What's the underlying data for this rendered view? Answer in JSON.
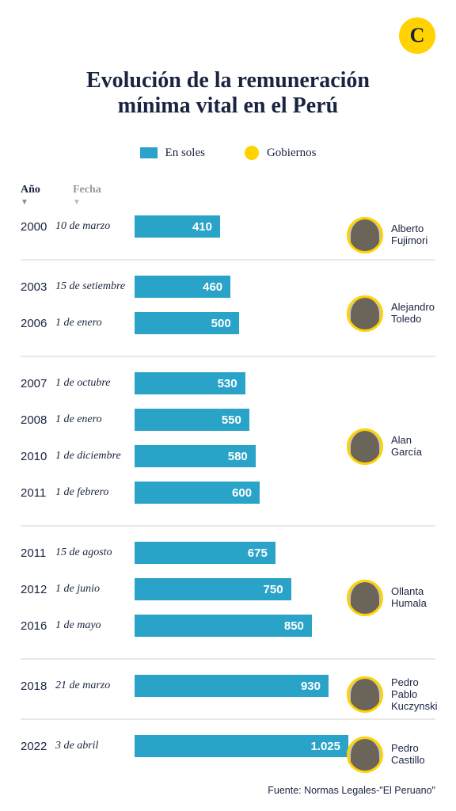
{
  "logo_letter": "C",
  "title_line1": "Evolución de la remuneración",
  "title_line2": "mínima vital en el Perú",
  "legend": {
    "soles": "En soles",
    "gobiernos": "Gobiernos"
  },
  "headers": {
    "year": "Año",
    "date": "Fecha"
  },
  "chart": {
    "max_value": 1025,
    "bar_color": "#2aa3c9",
    "ring_color": "#ffd200",
    "title_color": "#1a2340"
  },
  "groups": [
    {
      "president": "Alberto Fujimori",
      "rows": [
        {
          "year": "2000",
          "date": "10 de marzo",
          "value": 410,
          "label": "410"
        }
      ]
    },
    {
      "president": "Alejandro Toledo",
      "rows": [
        {
          "year": "2003",
          "date": "15 de setiembre",
          "value": 460,
          "label": "460"
        },
        {
          "year": "2006",
          "date": "1 de enero",
          "value": 500,
          "label": "500"
        }
      ]
    },
    {
      "president": "Alan García",
      "rows": [
        {
          "year": "2007",
          "date": "1 de octubre",
          "value": 530,
          "label": "530"
        },
        {
          "year": "2008",
          "date": "1 de enero",
          "value": 550,
          "label": "550"
        },
        {
          "year": "2010",
          "date": "1 de diciembre",
          "value": 580,
          "label": "580"
        },
        {
          "year": "2011",
          "date": "1 de febrero",
          "value": 600,
          "label": "600"
        }
      ]
    },
    {
      "president": "Ollanta Humala",
      "rows": [
        {
          "year": "2011",
          "date": "15 de agosto",
          "value": 675,
          "label": "675"
        },
        {
          "year": "2012",
          "date": "1 de junio",
          "value": 750,
          "label": "750"
        },
        {
          "year": "2016",
          "date": "1 de mayo",
          "value": 850,
          "label": "850"
        }
      ]
    },
    {
      "president": "Pedro Pablo Kuczynski",
      "rows": [
        {
          "year": "2018",
          "date": "21 de marzo",
          "value": 930,
          "label": "930"
        }
      ]
    },
    {
      "president": "Pedro Castillo",
      "rows": [
        {
          "year": "2022",
          "date": "3 de abril",
          "value": 1025,
          "label": "1.025"
        }
      ]
    }
  ],
  "source": "Fuente: Normas Legales-\"El Peruano\""
}
